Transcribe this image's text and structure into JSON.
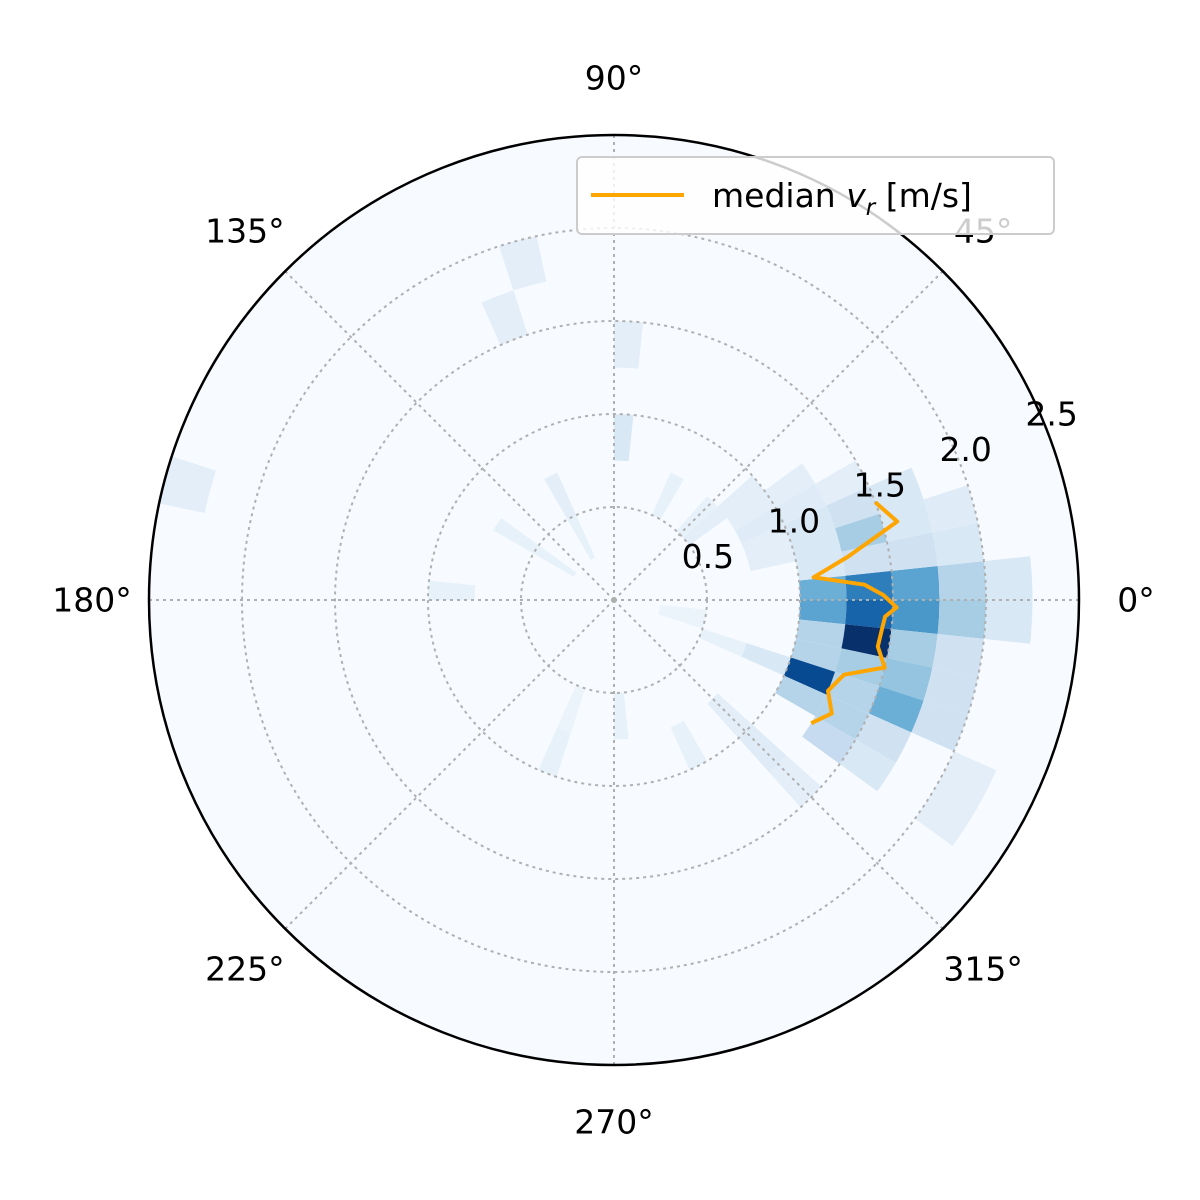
{
  "chart_data": {
    "type": "heatmap",
    "projection": "polar",
    "colormap": "Blues",
    "background_color": "#f7fbff",
    "median_color": "#ffa500",
    "rlim": [
      0,
      2.5
    ],
    "radial_ticks": [
      {
        "value": 0.5,
        "label": "0.5"
      },
      {
        "value": 1.0,
        "label": "1.0"
      },
      {
        "value": 1.5,
        "label": "1.5"
      },
      {
        "value": 2.0,
        "label": "2.0"
      },
      {
        "value": 2.5,
        "label": "2.5"
      }
    ],
    "radial_label_angle_deg": 22.5,
    "angle_ticks": [
      {
        "value": 0,
        "label": "0°"
      },
      {
        "value": 45,
        "label": "45°"
      },
      {
        "value": 90,
        "label": "90°"
      },
      {
        "value": 135,
        "label": "135°"
      },
      {
        "value": 180,
        "label": "180°"
      },
      {
        "value": 225,
        "label": "225°"
      },
      {
        "value": 270,
        "label": "270°"
      },
      {
        "value": 315,
        "label": "315°"
      }
    ],
    "grid": true,
    "legend": {
      "placement": "upper-right",
      "label_prefix": "median ",
      "label_var": "v",
      "label_sub": "r",
      "label_suffix": " [m/s]"
    },
    "bin_width_deg": 6,
    "radial_bin_width": 0.25,
    "cells": [
      {
        "theta": 3,
        "r": 1.125,
        "v": 0.5
      },
      {
        "theta": 3,
        "r": 1.375,
        "v": 0.7
      },
      {
        "theta": 3,
        "r": 1.625,
        "v": 0.55
      },
      {
        "theta": 3,
        "r": 1.875,
        "v": 0.3
      },
      {
        "theta": 3,
        "r": 2.125,
        "v": 0.15
      },
      {
        "theta": -3,
        "r": 1.125,
        "v": 0.55
      },
      {
        "theta": -3,
        "r": 1.375,
        "v": 0.8
      },
      {
        "theta": -3,
        "r": 1.625,
        "v": 0.6
      },
      {
        "theta": -3,
        "r": 1.875,
        "v": 0.35
      },
      {
        "theta": -3,
        "r": 2.125,
        "v": 0.15
      },
      {
        "theta": -9,
        "r": 1.125,
        "v": 0.3
      },
      {
        "theta": -9,
        "r": 1.375,
        "v": 1.0
      },
      {
        "theta": -9,
        "r": 1.625,
        "v": 0.35
      },
      {
        "theta": -9,
        "r": 1.875,
        "v": 0.2
      },
      {
        "theta": -15,
        "r": 1.125,
        "v": 0.3
      },
      {
        "theta": -15,
        "r": 1.375,
        "v": 0.35
      },
      {
        "theta": -15,
        "r": 1.625,
        "v": 0.4
      },
      {
        "theta": -15,
        "r": 1.875,
        "v": 0.2
      },
      {
        "theta": -21,
        "r": 0.875,
        "v": 0.15
      },
      {
        "theta": -21,
        "r": 1.125,
        "v": 0.9
      },
      {
        "theta": -21,
        "r": 1.375,
        "v": 0.3
      },
      {
        "theta": -21,
        "r": 1.625,
        "v": 0.5
      },
      {
        "theta": -21,
        "r": 1.875,
        "v": 0.2
      },
      {
        "theta": -27,
        "r": 1.125,
        "v": 0.3
      },
      {
        "theta": -27,
        "r": 1.375,
        "v": 0.3
      },
      {
        "theta": -27,
        "r": 1.625,
        "v": 0.2
      },
      {
        "theta": -27,
        "r": 2.125,
        "v": 0.1
      },
      {
        "theta": -33,
        "r": 1.375,
        "v": 0.25
      },
      {
        "theta": -33,
        "r": 1.625,
        "v": 0.15
      },
      {
        "theta": -33,
        "r": 2.125,
        "v": 0.1
      },
      {
        "theta": 9,
        "r": 1.125,
        "v": 0.15
      },
      {
        "theta": 9,
        "r": 1.375,
        "v": 0.2
      },
      {
        "theta": 9,
        "r": 1.625,
        "v": 0.2
      },
      {
        "theta": 9,
        "r": 1.875,
        "v": 0.15
      },
      {
        "theta": 15,
        "r": 0.875,
        "v": 0.1
      },
      {
        "theta": 15,
        "r": 1.125,
        "v": 0.15
      },
      {
        "theta": 15,
        "r": 1.375,
        "v": 0.35
      },
      {
        "theta": 15,
        "r": 1.625,
        "v": 0.15
      },
      {
        "theta": 15,
        "r": 1.875,
        "v": 0.12
      },
      {
        "theta": 21,
        "r": 0.875,
        "v": 0.1
      },
      {
        "theta": 21,
        "r": 1.125,
        "v": 0.15
      },
      {
        "theta": 21,
        "r": 1.375,
        "v": 0.2
      },
      {
        "theta": 21,
        "r": 1.625,
        "v": 0.15
      },
      {
        "theta": 27,
        "r": 0.875,
        "v": 0.12
      },
      {
        "theta": 27,
        "r": 1.125,
        "v": 0.12
      },
      {
        "theta": 27,
        "r": 1.375,
        "v": 0.1
      },
      {
        "theta": 33,
        "r": 0.875,
        "v": 0.1
      },
      {
        "theta": 33,
        "r": 1.125,
        "v": 0.1
      },
      {
        "theta": 39,
        "r": 0.625,
        "v": 0.1
      },
      {
        "theta": 39,
        "r": 0.875,
        "v": 0.1
      },
      {
        "theta": 45,
        "r": 0.625,
        "v": 0.08
      },
      {
        "theta": 63,
        "r": 0.625,
        "v": 0.08
      },
      {
        "theta": 87,
        "r": 0.875,
        "v": 0.15
      },
      {
        "theta": 87,
        "r": 1.375,
        "v": 0.1
      },
      {
        "theta": 105,
        "r": 1.875,
        "v": 0.1
      },
      {
        "theta": 111,
        "r": 1.625,
        "v": 0.1
      },
      {
        "theta": 117,
        "r": 0.375,
        "v": 0.08
      },
      {
        "theta": 117,
        "r": 0.625,
        "v": 0.1
      },
      {
        "theta": 147,
        "r": 0.375,
        "v": 0.08
      },
      {
        "theta": 147,
        "r": 0.625,
        "v": 0.08
      },
      {
        "theta": 165,
        "r": 2.375,
        "v": 0.1
      },
      {
        "theta": 177,
        "r": 0.875,
        "v": 0.08
      },
      {
        "theta": -9,
        "r": 0.375,
        "v": 0.06
      },
      {
        "theta": -15,
        "r": 0.375,
        "v": 0.06
      },
      {
        "theta": -21,
        "r": 0.625,
        "v": 0.08
      },
      {
        "theta": -45,
        "r": 0.875,
        "v": 0.1
      },
      {
        "theta": -45,
        "r": 1.125,
        "v": 0.12
      },
      {
        "theta": -45,
        "r": 1.375,
        "v": 0.1
      },
      {
        "theta": -63,
        "r": 0.875,
        "v": 0.08
      },
      {
        "theta": -87,
        "r": 0.625,
        "v": 0.08
      },
      {
        "theta": -111,
        "r": 0.625,
        "v": 0.06
      },
      {
        "theta": -111,
        "r": 0.875,
        "v": 0.08
      }
    ],
    "median_line": [
      {
        "theta": 20.5,
        "r": 1.5
      },
      {
        "theta": 15.5,
        "r": 1.58
      },
      {
        "theta": 10.5,
        "r": 1.28
      },
      {
        "theta": 6.5,
        "r": 1.08
      },
      {
        "theta": 3.5,
        "r": 1.35
      },
      {
        "theta": 1.0,
        "r": 1.45
      },
      {
        "theta": -1.5,
        "r": 1.52
      },
      {
        "theta": -3.5,
        "r": 1.46
      },
      {
        "theta": -6.0,
        "r": 1.45
      },
      {
        "theta": -10.0,
        "r": 1.44
      },
      {
        "theta": -14.0,
        "r": 1.5
      },
      {
        "theta": -18.0,
        "r": 1.3
      },
      {
        "theta": -23.0,
        "r": 1.25
      },
      {
        "theta": -27.5,
        "r": 1.32
      },
      {
        "theta": -32.0,
        "r": 1.25
      }
    ]
  }
}
